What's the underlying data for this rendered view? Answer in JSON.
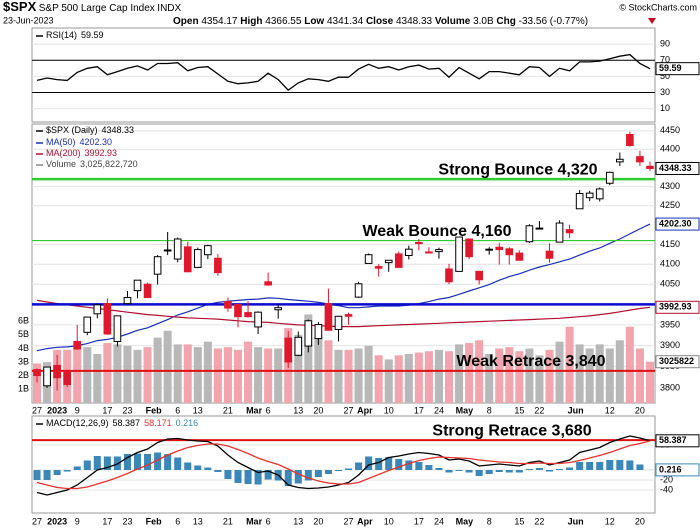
{
  "header": {
    "symbol": "$SPX",
    "name": "S&P 500 Large Cap Index",
    "exchange": "INDX",
    "date": "23-Jun-2023",
    "copyright": "© StockCharts.com",
    "quote": [
      {
        "label": "Open",
        "value": "4354.17"
      },
      {
        "label": "High",
        "value": "4366.55"
      },
      {
        "label": "Low",
        "value": "4341.34"
      },
      {
        "label": "Close",
        "value": "4348.33"
      },
      {
        "label": "Volume",
        "value": "3.0B"
      },
      {
        "label": "Chg",
        "value": "-33.56 (-0.77%)"
      }
    ]
  },
  "chart_data": [
    {
      "type": "line",
      "ylim": [
        -4,
        107.5
      ],
      "yticks": [
        10,
        30,
        50,
        70,
        90
      ],
      "bands": [
        30,
        70
      ],
      "grid": true,
      "series": [
        {
          "name": "RSI(14)",
          "color": "#000000",
          "values": [
            45,
            48,
            46,
            45,
            55,
            60,
            62,
            52,
            56,
            60,
            63,
            58,
            66,
            66,
            67,
            57,
            61,
            62,
            53,
            44,
            41,
            42,
            44,
            54,
            46,
            33,
            42,
            47,
            46,
            44,
            49,
            49,
            59,
            65,
            60,
            62,
            58,
            62,
            64,
            59,
            60,
            49,
            61,
            54,
            47,
            56,
            56,
            54,
            52,
            62,
            61,
            50,
            60,
            57,
            68,
            68,
            69,
            72,
            75,
            77,
            66,
            59.59
          ]
        }
      ]
    },
    {
      "type": "candlestick",
      "name": "$SPX (Daily)",
      "log": true,
      "ylim": [
        3765,
        4466
      ],
      "yticks": [
        3800,
        3850,
        3900,
        3950,
        4050,
        4100,
        4150,
        4250,
        4300,
        4400,
        4450
      ],
      "grid": true,
      "up_color": "#000000",
      "down_color": "#e0182d",
      "categories": [
        "27",
        null,
        "2023",
        null,
        "9",
        null,
        null,
        "17",
        null,
        "23",
        null,
        null,
        "Feb",
        null,
        "6",
        null,
        "13",
        null,
        null,
        "21",
        null,
        null,
        "Mar",
        "6",
        null,
        null,
        "13",
        null,
        "20",
        null,
        null,
        "27",
        null,
        "Apr",
        null,
        "10",
        null,
        null,
        "17",
        null,
        "24",
        null,
        null,
        "May",
        null,
        "8",
        null,
        null,
        "15",
        null,
        "22",
        null,
        null,
        null,
        "Jun",
        null,
        null,
        "12",
        null,
        null,
        "20",
        null
      ],
      "open": [
        3843,
        3805,
        3853,
        3840,
        3910,
        3932,
        3977,
        4002,
        3910,
        4002,
        4034,
        4050,
        4075,
        4136,
        4113,
        4144,
        4092,
        4124,
        4115,
        4007,
        4000,
        3980,
        3945,
        4056,
        3987,
        3918,
        3877,
        3899,
        3917,
        4002,
        3939,
        3975,
        4018,
        4102,
        4094,
        4104,
        4126,
        4122,
        4155,
        4131,
        4132,
        4088,
        4082,
        4164,
        4082,
        4136,
        4143,
        4139,
        4128,
        4157,
        4190,
        4133,
        4156,
        4188,
        4242,
        4271,
        4268,
        4309,
        4366,
        4440,
        4380,
        4354.17
      ],
      "high": [
        3846,
        3850,
        3878,
        3841,
        3950,
        3970,
        4003,
        4015,
        3973,
        4033,
        4060,
        4054,
        4123,
        4182,
        4168,
        4157,
        4142,
        4149,
        4126,
        4017,
        4001,
        4008,
        3983,
        4079,
        4000,
        3935,
        3934,
        3963,
        3957,
        4039,
        3972,
        3980,
        4056,
        4127,
        4100,
        4110,
        4132,
        4147,
        4164,
        4143,
        4142,
        4101,
        4170,
        4165,
        4083,
        4143,
        4154,
        4143,
        4135,
        4202,
        4210,
        4153,
        4212,
        4201,
        4291,
        4289,
        4298,
        4340,
        4391,
        4448,
        4396,
        4366.55
      ],
      "low": [
        3813,
        3800,
        3794,
        3802,
        3890,
        3925,
        3966,
        3926,
        3898,
        3999,
        4015,
        4017,
        4049,
        4123,
        4105,
        4080,
        4090,
        4113,
        4071,
        3982,
        3944,
        3968,
        3928,
        4046,
        3965,
        3847,
        3875,
        3884,
        3902,
        3936,
        3910,
        3950,
        4016,
        4102,
        4069,
        4081,
        4092,
        4112,
        4135,
        4127,
        4114,
        4050,
        4082,
        4113,
        4049,
        4124,
        4099,
        4099,
        4110,
        4154,
        4189,
        4104,
        4156,
        4166,
        4242,
        4262,
        4261,
        4304,
        4355,
        4407,
        4355,
        4341.34
      ],
      "close": [
        3829,
        3849,
        3824,
        3808,
        3892,
        3969,
        3999,
        3928,
        3972,
        4017,
        4060,
        4017,
        4119,
        4136,
        4164,
        4081,
        4137,
        4147,
        4079,
        3991,
        3970,
        3970,
        3981,
        4048,
        3992,
        3861,
        3920,
        3960,
        3951,
        3937,
        3971,
        3971,
        4051,
        4124,
        4090,
        4110,
        4092,
        4138,
        4154,
        4130,
        4137,
        4056,
        4169,
        4119,
        4061,
        4138,
        4137,
        4124,
        4110,
        4198,
        4192,
        4115,
        4205,
        4180,
        4282,
        4283,
        4294,
        4338,
        4373,
        4410,
        4366,
        4348.33
      ],
      "series": [
        {
          "name": "MA(50)",
          "color": "#1a2fb8",
          "last_label": "4202.30",
          "values": [
            3888,
            3893,
            3896,
            3897,
            3900,
            3905,
            3912,
            3915,
            3920,
            3928,
            3937,
            3943,
            3953,
            3963,
            3974,
            3982,
            3991,
            4000,
            4005,
            4008,
            4010,
            4012,
            4013,
            4016,
            4015,
            4012,
            4010,
            4008,
            4005,
            4001,
            3997,
            3992,
            3992,
            3994,
            3996,
            3996,
            3996,
            3998,
            4002,
            4007,
            4013,
            4017,
            4025,
            4033,
            4041,
            4049,
            4060,
            4069,
            4076,
            4085,
            4093,
            4099,
            4106,
            4113,
            4123,
            4133,
            4141,
            4153,
            4164,
            4177,
            4190,
            4202.3
          ]
        },
        {
          "name": "MA(200)",
          "color": "#b01030",
          "last_label": "3992.93",
          "values": [
            4010,
            4006,
            4002,
            3999,
            3996,
            3993,
            3990,
            3987,
            3984,
            3981,
            3978,
            3975,
            3973,
            3971,
            3969,
            3967,
            3966,
            3965,
            3964,
            3962,
            3960,
            3958,
            3957,
            3956,
            3954,
            3952,
            3950,
            3949,
            3948,
            3947,
            3946,
            3946,
            3946,
            3947,
            3948,
            3949,
            3950,
            3951,
            3952,
            3953,
            3954,
            3955,
            3956,
            3957,
            3958,
            3959,
            3960,
            3961,
            3962,
            3963,
            3964,
            3965,
            3966,
            3968,
            3970,
            3972,
            3975,
            3978,
            3982,
            3986,
            3990,
            3992.93
          ]
        }
      ],
      "volume": {
        "name": "Volume",
        "axis": "y2",
        "color": "#b8b8b8",
        "down_color": "#f2a5ae",
        "last_label": "3,025,822,720",
        "axis_label": "3025822",
        "values": [
          2.9,
          3.0,
          3.9,
          3.9,
          4.0,
          4.1,
          3.6,
          4.4,
          4.3,
          4.2,
          3.9,
          4.1,
          4.8,
          5.3,
          4.3,
          4.3,
          4.1,
          4.5,
          4.0,
          4.1,
          3.9,
          4.5,
          4.1,
          4.0,
          4.0,
          5.5,
          5.0,
          6.5,
          5.0,
          4.6,
          3.9,
          3.9,
          4.0,
          4.2,
          3.5,
          3.2,
          3.5,
          3.6,
          3.7,
          3.8,
          3.9,
          3.8,
          4.3,
          4.4,
          4.6,
          3.6,
          4.0,
          4.1,
          3.8,
          4.0,
          3.5,
          3.9,
          4.5,
          5.6,
          4.3,
          4.0,
          4.3,
          4.0,
          4.6,
          5.6,
          4.0,
          3.03
        ]
      },
      "y2lim": [
        0,
        20.4
      ],
      "y2ticks": [
        {
          "value": 1,
          "label": "1B"
        },
        {
          "value": 2,
          "label": "2B"
        },
        {
          "value": 3,
          "label": "3B"
        },
        {
          "value": 4,
          "label": "4B"
        },
        {
          "value": 5,
          "label": "5B"
        },
        {
          "value": 6,
          "label": "6B"
        }
      ],
      "annotations": [
        {
          "text": "Strong Bounce 4,320",
          "y": 4320,
          "color": "#2ecc2e"
        },
        {
          "text": "Weak Bounce 4,160",
          "y": 4160,
          "color": "#2ecc2e"
        },
        {
          "y": 4000,
          "color": "#0a0ad0"
        },
        {
          "text": "Weak Retrace 3,840",
          "y": 3840,
          "color": "#e01010"
        },
        {
          "text": "Strong Retrace 3,680",
          "y": 3680,
          "color": "#e01010"
        }
      ]
    },
    {
      "type": "line",
      "ylim": [
        -84,
        104
      ],
      "yticks": [
        -40,
        -20,
        0,
        50
      ],
      "grid": true,
      "categories": [
        "27",
        null,
        "2023",
        null,
        "9",
        null,
        null,
        "17",
        null,
        "23",
        null,
        null,
        "Feb",
        null,
        "6",
        null,
        "13",
        null,
        null,
        "21",
        null,
        null,
        "Mar",
        "6",
        null,
        null,
        "13",
        null,
        "20",
        null,
        null,
        "27",
        null,
        "Apr",
        null,
        "10",
        null,
        null,
        "17",
        null,
        "24",
        null,
        null,
        "May",
        null,
        "8",
        null,
        null,
        "15",
        null,
        "22",
        null,
        null,
        null,
        "Jun",
        null,
        null,
        "12",
        null,
        null,
        "20",
        null
      ],
      "series": [
        {
          "name": "MACD(12,26,9)",
          "color": "#000000",
          "values": [
            -45,
            -50,
            -45,
            -40,
            -30,
            -15,
            0,
            5,
            12,
            25,
            35,
            42,
            55,
            62,
            63,
            60,
            58,
            57,
            48,
            30,
            15,
            5,
            -5,
            -2,
            -10,
            -30,
            -35,
            -37,
            -36,
            -34,
            -30,
            -25,
            -10,
            10,
            15,
            25,
            28,
            32,
            35,
            33,
            30,
            20,
            22,
            18,
            8,
            10,
            12,
            10,
            8,
            15,
            18,
            10,
            15,
            20,
            35,
            40,
            45,
            55,
            62,
            68,
            64,
            58.387
          ]
        },
        {
          "color": "#e8322e",
          "values": [
            -25,
            -30,
            -35,
            -37,
            -37,
            -34,
            -28,
            -22,
            -15,
            -7,
            2,
            10,
            20,
            30,
            38,
            45,
            49,
            52,
            52,
            48,
            41,
            33,
            24,
            17,
            11,
            2,
            -8,
            -16,
            -22,
            -26,
            -28,
            -28,
            -25,
            -17,
            -9,
            -1,
            6,
            13,
            19,
            23,
            26,
            25,
            24,
            23,
            20,
            18,
            16,
            15,
            13,
            13,
            14,
            13,
            13,
            15,
            19,
            24,
            29,
            35,
            42,
            49,
            53,
            58.171
          ]
        },
        {
          "color": "#3a87b8",
          "kind": "bar",
          "values": [
            -20,
            -20,
            -10,
            -3,
            7,
            19,
            28,
            27,
            27,
            32,
            33,
            32,
            35,
            32,
            25,
            15,
            9,
            5,
            -4,
            -18,
            -26,
            -28,
            -29,
            -19,
            -21,
            -32,
            -27,
            -21,
            -14,
            -8,
            -2,
            3,
            15,
            27,
            24,
            26,
            22,
            19,
            16,
            10,
            4,
            -5,
            -2,
            -5,
            -12,
            -8,
            -4,
            -5,
            -5,
            2,
            4,
            -3,
            2,
            5,
            16,
            16,
            16,
            20,
            20,
            19,
            11,
            0.216
          ]
        }
      ]
    }
  ]
}
